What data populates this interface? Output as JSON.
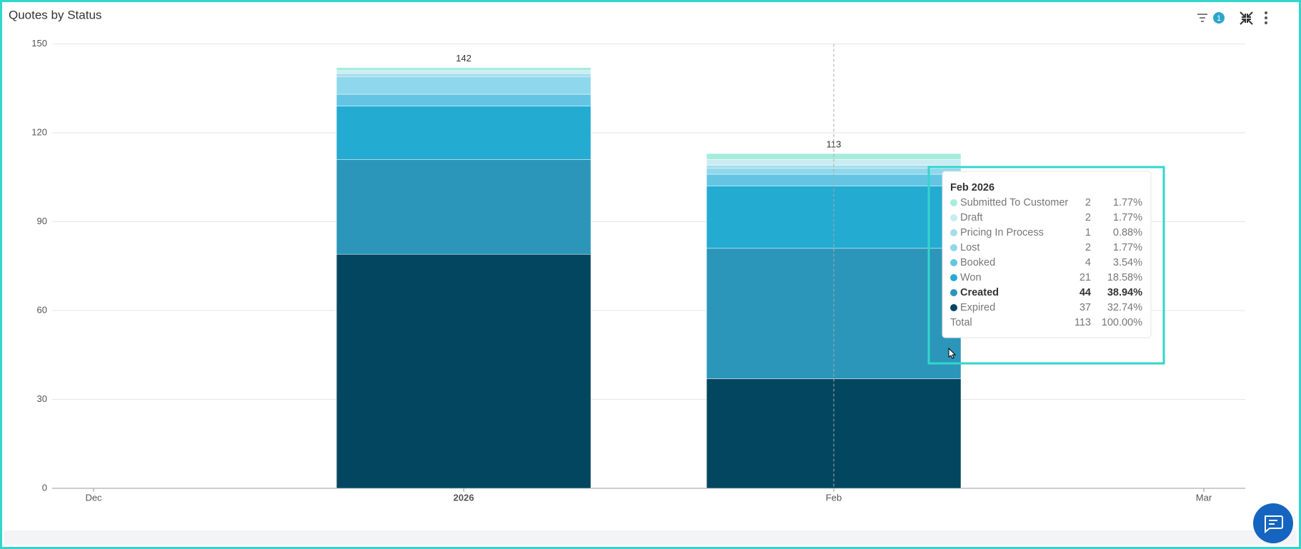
{
  "header": {
    "filter_count": 1
  },
  "chart_data": {
    "type": "stacked_bar",
    "title": "Quotes by Status",
    "categories": [
      "Dec",
      "2026",
      "Feb",
      "Mar"
    ],
    "series": [
      {
        "name": "Submitted To Customer",
        "color": "#a6ecdc",
        "values": [
          null,
          1,
          2,
          null
        ]
      },
      {
        "name": "Draft",
        "color": "#c8ecf1",
        "values": [
          null,
          1,
          2,
          null
        ]
      },
      {
        "name": "Pricing In Process",
        "color": "#a6dcea",
        "values": [
          null,
          1,
          1,
          null
        ]
      },
      {
        "name": "Lost",
        "color": "#8fd7ec",
        "values": [
          null,
          6,
          2,
          null
        ]
      },
      {
        "name": "Booked",
        "color": "#63c5e3",
        "values": [
          null,
          4,
          4,
          null
        ]
      },
      {
        "name": "Won",
        "color": "#24abd1",
        "values": [
          null,
          18,
          21,
          null
        ]
      },
      {
        "name": "Created",
        "color": "#2b96b9",
        "values": [
          null,
          32,
          44,
          null
        ]
      },
      {
        "name": "Expired",
        "color": "#02475f",
        "values": [
          null,
          79,
          37,
          null
        ]
      }
    ],
    "totals": [
      null,
      142,
      113,
      null
    ],
    "ylim": [
      0,
      150
    ],
    "yticks": [
      0,
      30,
      60,
      90,
      120,
      150
    ],
    "grid": true,
    "tooltip": {
      "title": "Feb 2026",
      "percent_labels": [
        "1.77%",
        "1.77%",
        "0.88%",
        "1.77%",
        "3.54%",
        "18.58%",
        "38.94%",
        "32.74%"
      ],
      "total_label": "Total",
      "total_percent_label": "100.00%"
    }
  }
}
